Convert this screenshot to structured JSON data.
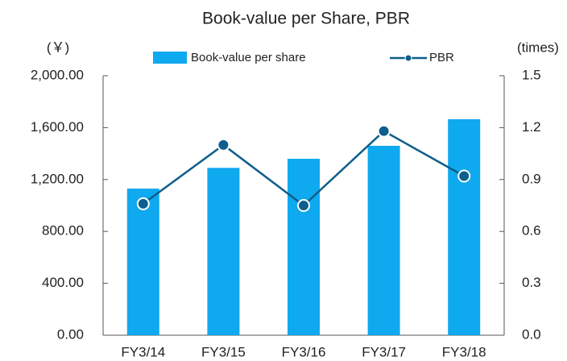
{
  "chart_data": {
    "type": "bar_line",
    "title": "Book-value per Share, PBR",
    "y_label": "(￥)",
    "y2_label": "(times)",
    "categories": [
      "FY3/14",
      "FY3/15",
      "FY3/16",
      "FY3/17",
      "FY3/18"
    ],
    "series": [
      {
        "name": "Book-value per share",
        "type": "bar",
        "color": "#0fa9ef",
        "values": [
          1130,
          1290,
          1360,
          1460,
          1665
        ]
      },
      {
        "name": "PBR",
        "type": "line",
        "axis": "y2",
        "color": "#0d5e8c",
        "values": [
          0.76,
          1.1,
          0.75,
          1.18,
          0.92
        ]
      }
    ],
    "ylim": [
      0,
      2000
    ],
    "yticks": [
      {
        "value": 0,
        "label": "0.00"
      },
      {
        "value": 400,
        "label": "400.00"
      },
      {
        "value": 800,
        "label": "800.00"
      },
      {
        "value": 1200,
        "label": "1,200.00"
      },
      {
        "value": 1600,
        "label": "1,600.00"
      },
      {
        "value": 2000,
        "label": "2,000.00"
      }
    ],
    "y2lim": [
      0,
      1.5
    ],
    "y2ticks": [
      {
        "value": 0,
        "label": "0.0"
      },
      0.3,
      0.6,
      0.9,
      1.2,
      1.5
    ],
    "grid": false
  }
}
